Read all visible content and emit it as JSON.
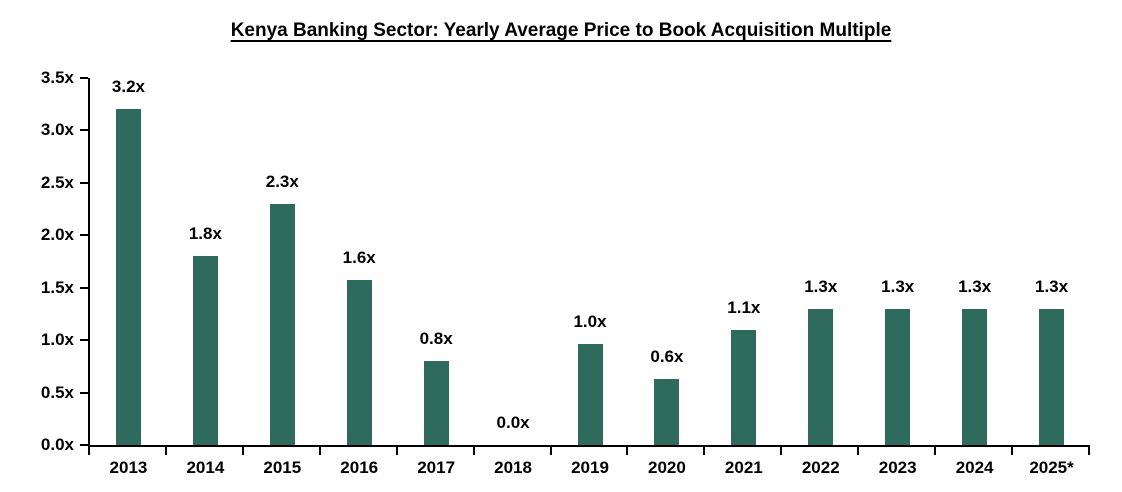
{
  "title": "Kenya Banking Sector: Yearly Average Price to Book Acquisition Multiple",
  "chart_data": {
    "type": "bar",
    "title": "Kenya Banking Sector: Yearly Average Price to Book Acquisition Multiple",
    "categories": [
      "2013",
      "2014",
      "2015",
      "2016",
      "2017",
      "2018",
      "2019",
      "2020",
      "2021",
      "2022",
      "2023",
      "2024",
      "2025*"
    ],
    "values": [
      3.2,
      1.8,
      2.3,
      1.6,
      0.8,
      0.0,
      1.0,
      0.6,
      1.1,
      1.3,
      1.3,
      1.3,
      1.3
    ],
    "data_labels": [
      "3.2x",
      "1.8x",
      "2.3x",
      "1.6x",
      "0.8x",
      "0.0x",
      "1.0x",
      "0.6x",
      "1.1x",
      "1.3x",
      "1.3x",
      "1.3x",
      "1.3x"
    ],
    "bar_heights_raw": [
      3.2,
      1.8,
      2.3,
      1.57,
      0.8,
      0.0,
      0.96,
      0.63,
      1.1,
      1.3,
      1.3,
      1.3,
      1.3
    ],
    "y_tick_labels": [
      "0.0x",
      "0.5x",
      "1.0x",
      "1.5x",
      "2.0x",
      "2.5x",
      "3.0x",
      "3.5x"
    ],
    "ylim": [
      0,
      3.5
    ],
    "xlabel": "",
    "ylabel": "",
    "grid": false,
    "legend": false,
    "bar_color": "#2F6B5D",
    "axis_color": "#000000",
    "text_color": "#000000",
    "background_color": "#FFFFFF"
  }
}
